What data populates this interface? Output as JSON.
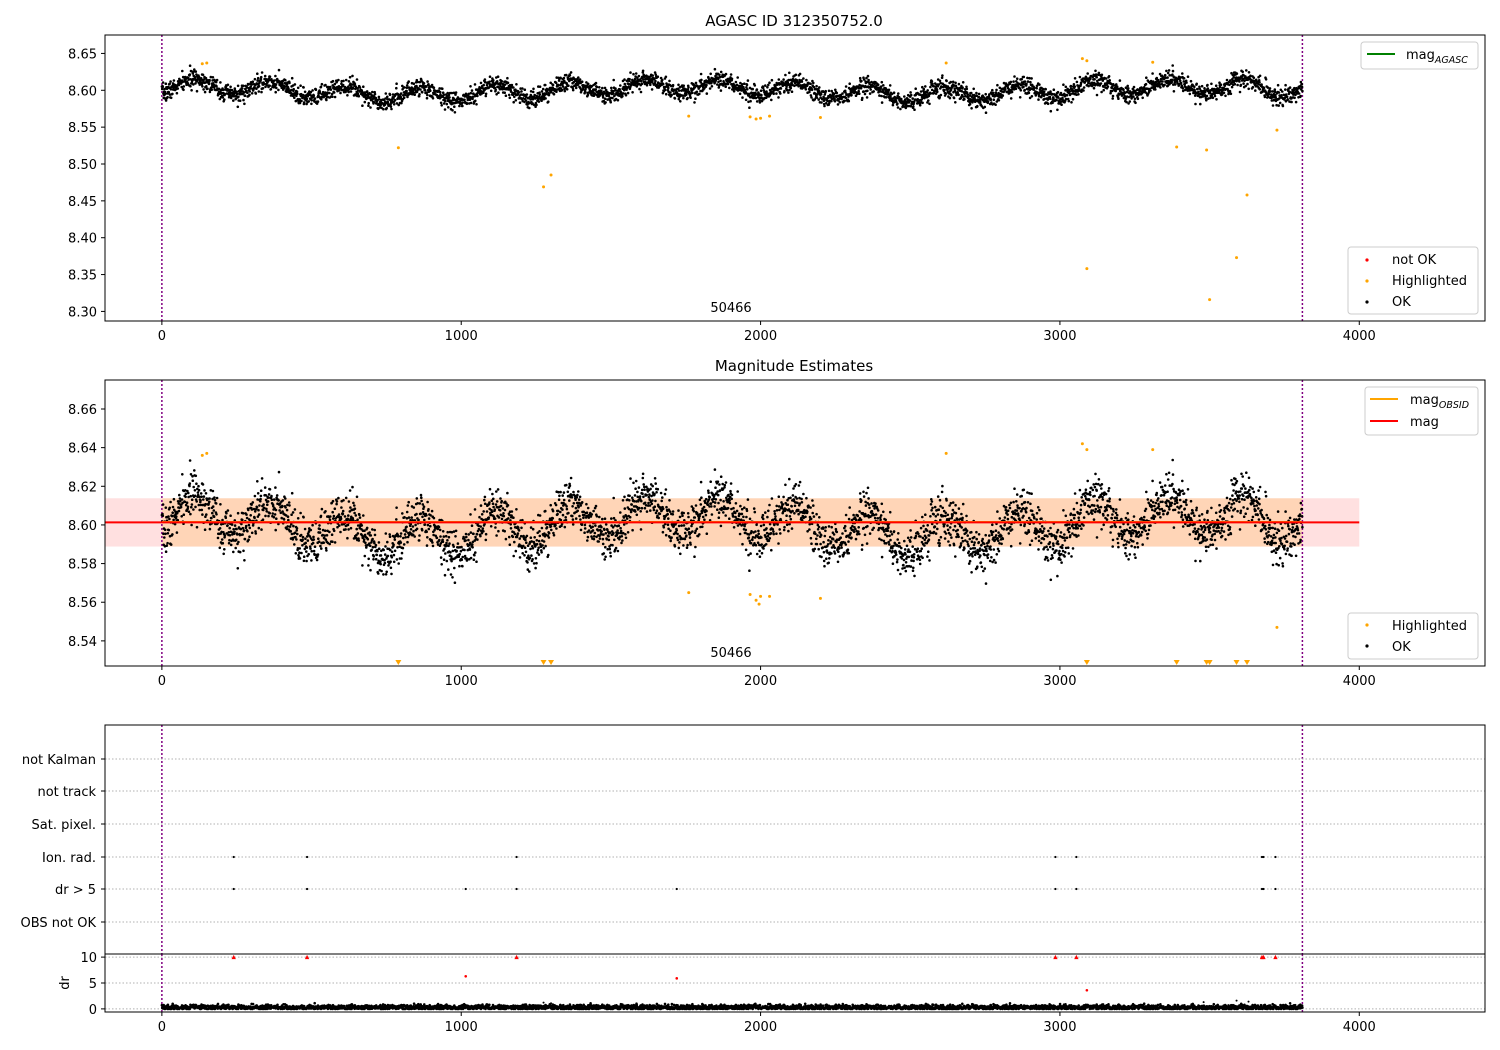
{
  "colors": {
    "ok": "#000000",
    "highlighted": "#FFA500",
    "not_ok": "#FF0000",
    "mag_agasc": "#008000",
    "mag_obsid": "#FFA500",
    "mag": "#FF0000",
    "band_obsid": "#FFA500",
    "band_mag": "#FF0000",
    "obsid_marker": "#800080",
    "grid": "#b0b0b0"
  },
  "chart_data": [
    {
      "id": "agasc",
      "type": "scatter",
      "title": "AGASC ID 312350752.0",
      "xlim": [
        -190,
        4420
      ],
      "ylim": [
        8.287,
        8.675
      ],
      "x_ticks": [
        0,
        1000,
        2000,
        3000,
        4000
      ],
      "y_ticks": [
        8.3,
        8.35,
        8.4,
        8.45,
        8.5,
        8.55,
        8.6,
        8.65
      ],
      "y_tick_labels": [
        "8.30",
        "8.35",
        "8.40",
        "8.45",
        "8.50",
        "8.55",
        "8.60",
        "8.65"
      ],
      "obsid_boundaries": [
        0,
        3810
      ],
      "obsid_label": {
        "text": "50466",
        "x": 1900,
        "y": 8.29
      },
      "lines": [
        {
          "name": "mag_AGASC",
          "color_key": "mag_agasc"
        }
      ],
      "legend_lines": {
        "main": "mag",
        "sub": "AGASC",
        "position": "upper right"
      },
      "legend_points": {
        "position": "lower right",
        "items": [
          {
            "label": "not OK",
            "color_key": "not_ok"
          },
          {
            "label": "Highlighted",
            "color_key": "highlighted"
          },
          {
            "label": "OK",
            "color_key": "ok"
          }
        ]
      },
      "ok_series": {
        "n_points": 3800,
        "x_range": [
          0,
          3810
        ],
        "mean": 8.6,
        "wave": [
          {
            "amp": 0.01,
            "period": 250,
            "phase": 5.0
          },
          {
            "amp": 0.006,
            "period": 1700,
            "phase": 1.5
          }
        ],
        "noise": 0.006
      },
      "highlighted_points": [
        {
          "x": 135,
          "y": 8.636
        },
        {
          "x": 150,
          "y": 8.637
        },
        {
          "x": 790,
          "y": 8.522
        },
        {
          "x": 1275,
          "y": 8.469
        },
        {
          "x": 1300,
          "y": 8.485
        },
        {
          "x": 1760,
          "y": 8.565
        },
        {
          "x": 1965,
          "y": 8.564
        },
        {
          "x": 1985,
          "y": 8.561
        },
        {
          "x": 2000,
          "y": 8.562
        },
        {
          "x": 2030,
          "y": 8.565
        },
        {
          "x": 2200,
          "y": 8.563
        },
        {
          "x": 2620,
          "y": 8.637
        },
        {
          "x": 3075,
          "y": 8.643
        },
        {
          "x": 3090,
          "y": 8.64
        },
        {
          "x": 3090,
          "y": 8.358
        },
        {
          "x": 3310,
          "y": 8.638
        },
        {
          "x": 3390,
          "y": 8.523
        },
        {
          "x": 3490,
          "y": 8.519
        },
        {
          "x": 3500,
          "y": 8.316
        },
        {
          "x": 3590,
          "y": 8.373
        },
        {
          "x": 3625,
          "y": 8.458
        },
        {
          "x": 3725,
          "y": 8.546
        }
      ]
    },
    {
      "id": "estimates",
      "type": "scatter",
      "title": "Magnitude Estimates",
      "xlim": [
        -190,
        4420
      ],
      "ylim": [
        8.527,
        8.675
      ],
      "x_ticks": [
        0,
        1000,
        2000,
        3000,
        4000
      ],
      "y_ticks": [
        8.54,
        8.56,
        8.58,
        8.6,
        8.62,
        8.64,
        8.66
      ],
      "y_tick_labels": [
        "8.54",
        "8.56",
        "8.58",
        "8.60",
        "8.62",
        "8.64",
        "8.66"
      ],
      "obsid_boundaries": [
        0,
        3810
      ],
      "obsid_label": {
        "text": "50466",
        "x": 1900,
        "y": 8.529
      },
      "mag": {
        "value": 8.6013,
        "band": [
          8.5888,
          8.6138
        ],
        "x_range": [
          -190,
          4000
        ]
      },
      "mag_obsid": {
        "value": 8.6015,
        "band": [
          8.5888,
          8.6138
        ],
        "x_range": [
          0,
          3810
        ]
      },
      "legend_lines": {
        "position": "upper right",
        "items": [
          {
            "main": "mag",
            "sub": "OBSID",
            "color_key": "mag_obsid"
          },
          {
            "main": "mag",
            "sub": "",
            "color_key": "mag"
          }
        ]
      },
      "legend_points": {
        "position": "lower right",
        "items": [
          {
            "label": "Highlighted",
            "color_key": "highlighted"
          },
          {
            "label": "OK",
            "color_key": "ok"
          }
        ]
      },
      "highlighted_points": [
        {
          "x": 135,
          "y": 8.636
        },
        {
          "x": 150,
          "y": 8.637
        },
        {
          "x": 1760,
          "y": 8.565
        },
        {
          "x": 1965,
          "y": 8.564
        },
        {
          "x": 1985,
          "y": 8.561
        },
        {
          "x": 1995,
          "y": 8.559
        },
        {
          "x": 2000,
          "y": 8.563
        },
        {
          "x": 2030,
          "y": 8.563
        },
        {
          "x": 2200,
          "y": 8.562
        },
        {
          "x": 2620,
          "y": 8.637
        },
        {
          "x": 3075,
          "y": 8.642
        },
        {
          "x": 3090,
          "y": 8.639
        },
        {
          "x": 3310,
          "y": 8.639
        },
        {
          "x": 3725,
          "y": 8.547
        }
      ],
      "below_range_x": [
        790,
        1275,
        1300,
        3090,
        3390,
        3490,
        3500,
        3590,
        3625
      ]
    },
    {
      "id": "flags",
      "type": "scatter",
      "xlim": [
        -190,
        4420
      ],
      "obsid_boundaries": [
        0,
        3810
      ],
      "flag_rows": [
        "not Kalman",
        "not track",
        "Sat. pixel.",
        "Ion. rad.",
        "dr > 5",
        "OBS not OK"
      ],
      "flag_points": {
        "Ion. rad.": [
          240,
          485,
          1185,
          2985,
          3055,
          3675,
          3680,
          3720
        ],
        "dr > 5": [
          240,
          485,
          1015,
          1185,
          1720,
          2985,
          3055,
          3675,
          3680,
          3720
        ]
      }
    },
    {
      "id": "dr",
      "type": "scatter",
      "ylabel": "dr",
      "xlim": [
        -190,
        4420
      ],
      "ylim": [
        -0.6,
        10.6
      ],
      "x_ticks": [
        0,
        1000,
        2000,
        3000,
        4000
      ],
      "y_ticks": [
        0,
        5,
        10
      ],
      "y_tick_labels": [
        "0",
        "5",
        "10"
      ],
      "obsid_boundaries": [
        0,
        3810
      ],
      "ok_series": {
        "n_points": 3800,
        "x_range": [
          0,
          3810
        ],
        "level": 0.3,
        "noise": 0.25
      },
      "clipped_at_10_x": [
        240,
        485,
        1185,
        2985,
        3055,
        3675,
        3680,
        3720
      ],
      "red_points": [
        {
          "x": 1015,
          "y": 6.3
        },
        {
          "x": 1720,
          "y": 5.9
        },
        {
          "x": 3090,
          "y": 3.6
        }
      ],
      "minor_points": [
        {
          "x": 1275,
          "y": 1.2
        },
        {
          "x": 1300,
          "y": 1.1
        },
        {
          "x": 3480,
          "y": 1.3
        },
        {
          "x": 3590,
          "y": 1.6
        },
        {
          "x": 3630,
          "y": 1.4
        }
      ]
    }
  ]
}
